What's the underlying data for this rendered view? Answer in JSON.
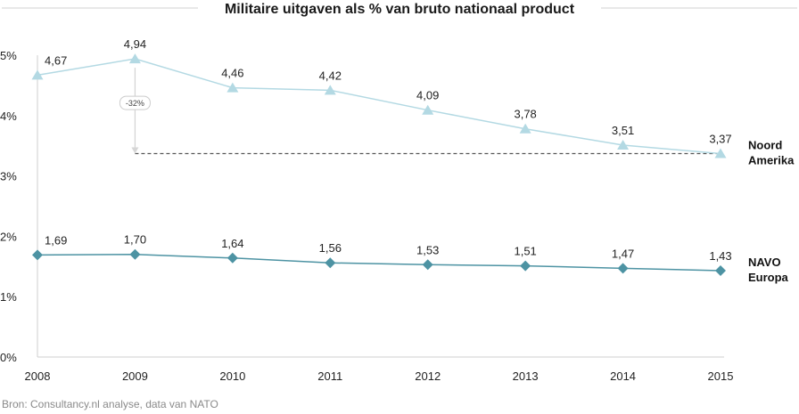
{
  "chart_data": {
    "type": "line",
    "title": "Militaire uitgaven als % van bruto nationaal product",
    "x": [
      "2008",
      "2009",
      "2010",
      "2011",
      "2012",
      "2013",
      "2014",
      "2015"
    ],
    "y_ticks": [
      "0%",
      "1%",
      "2%",
      "3%",
      "4%",
      "5%"
    ],
    "ylim": [
      0,
      5
    ],
    "grid": false,
    "series": [
      {
        "name": "Noord Amerika",
        "name_lines": [
          "Noord",
          "Amerika"
        ],
        "marker": "triangle",
        "color": "#b3d9e3",
        "values": [
          4.67,
          4.94,
          4.46,
          4.42,
          4.09,
          3.78,
          3.51,
          3.37
        ],
        "labels": [
          "4,67",
          "4,94",
          "4,46",
          "4,42",
          "4,09",
          "3,78",
          "3,51",
          "3,37"
        ]
      },
      {
        "name": "NAVO Europa",
        "name_lines": [
          "NAVO",
          "Europa"
        ],
        "marker": "diamond",
        "color": "#4d93a3",
        "values": [
          1.69,
          1.7,
          1.64,
          1.56,
          1.53,
          1.51,
          1.47,
          1.43
        ],
        "labels": [
          "1,69",
          "1,70",
          "1,64",
          "1,56",
          "1,53",
          "1,51",
          "1,47",
          "1,43"
        ]
      }
    ],
    "annotation": {
      "text": "-32%",
      "from_year": "2009",
      "from_value": 4.94,
      "to_value": 3.37
    }
  },
  "source": "Bron: Consultancy.nl analyse, data van NATO"
}
